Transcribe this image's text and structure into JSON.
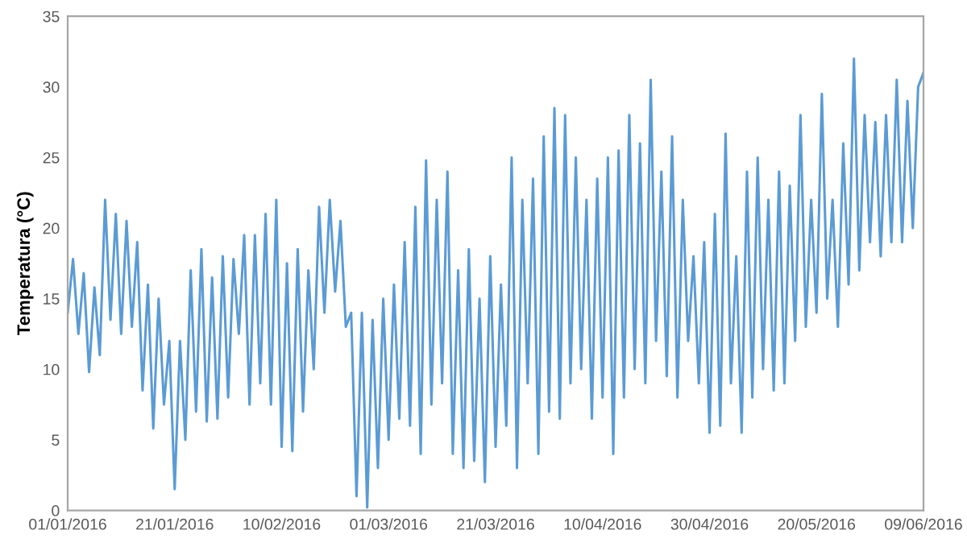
{
  "chart_data": {
    "type": "line",
    "ylabel": "Temperatura (°C)",
    "x": [
      "2016-01-01",
      "2016-01-02",
      "2016-01-03",
      "2016-01-04",
      "2016-01-05",
      "2016-01-06",
      "2016-01-07",
      "2016-01-08",
      "2016-01-09",
      "2016-01-10",
      "2016-01-11",
      "2016-01-12",
      "2016-01-13",
      "2016-01-14",
      "2016-01-15",
      "2016-01-16",
      "2016-01-17",
      "2016-01-18",
      "2016-01-19",
      "2016-01-20",
      "2016-01-21",
      "2016-01-22",
      "2016-01-23",
      "2016-01-24",
      "2016-01-25",
      "2016-01-26",
      "2016-01-27",
      "2016-01-28",
      "2016-01-29",
      "2016-01-30",
      "2016-01-31",
      "2016-02-01",
      "2016-02-02",
      "2016-02-03",
      "2016-02-04",
      "2016-02-05",
      "2016-02-06",
      "2016-02-07",
      "2016-02-08",
      "2016-02-09",
      "2016-02-10",
      "2016-02-11",
      "2016-02-12",
      "2016-02-13",
      "2016-02-14",
      "2016-02-15",
      "2016-02-16",
      "2016-02-17",
      "2016-02-18",
      "2016-02-19",
      "2016-02-20",
      "2016-02-21",
      "2016-02-22",
      "2016-02-23",
      "2016-02-24",
      "2016-02-25",
      "2016-02-26",
      "2016-02-27",
      "2016-02-28",
      "2016-02-29",
      "2016-03-01",
      "2016-03-02",
      "2016-03-03",
      "2016-03-04",
      "2016-03-05",
      "2016-03-06",
      "2016-03-07",
      "2016-03-08",
      "2016-03-09",
      "2016-03-10",
      "2016-03-11",
      "2016-03-12",
      "2016-03-13",
      "2016-03-14",
      "2016-03-15",
      "2016-03-16",
      "2016-03-17",
      "2016-03-18",
      "2016-03-19",
      "2016-03-20",
      "2016-03-21",
      "2016-03-22",
      "2016-03-23",
      "2016-03-24",
      "2016-03-25",
      "2016-03-26",
      "2016-03-27",
      "2016-03-28",
      "2016-03-29",
      "2016-03-30",
      "2016-03-31",
      "2016-04-01",
      "2016-04-02",
      "2016-04-03",
      "2016-04-04",
      "2016-04-05",
      "2016-04-06",
      "2016-04-07",
      "2016-04-08",
      "2016-04-09",
      "2016-04-10",
      "2016-04-11",
      "2016-04-12",
      "2016-04-13",
      "2016-04-14",
      "2016-04-15",
      "2016-04-16",
      "2016-04-17",
      "2016-04-18",
      "2016-04-19",
      "2016-04-20",
      "2016-04-21",
      "2016-04-22",
      "2016-04-23",
      "2016-04-24",
      "2016-04-25",
      "2016-04-26",
      "2016-04-27",
      "2016-04-28",
      "2016-04-29",
      "2016-04-30",
      "2016-05-01",
      "2016-05-02",
      "2016-05-03",
      "2016-05-04",
      "2016-05-05",
      "2016-05-06",
      "2016-05-07",
      "2016-05-08",
      "2016-05-09",
      "2016-05-10",
      "2016-05-11",
      "2016-05-12",
      "2016-05-13",
      "2016-05-14",
      "2016-05-15",
      "2016-05-16",
      "2016-05-17",
      "2016-05-18",
      "2016-05-19",
      "2016-05-20",
      "2016-05-21",
      "2016-05-22",
      "2016-05-23",
      "2016-05-24",
      "2016-05-25",
      "2016-05-26",
      "2016-05-27",
      "2016-05-28",
      "2016-05-29",
      "2016-05-30",
      "2016-05-31",
      "2016-06-01",
      "2016-06-02",
      "2016-06-03",
      "2016-06-04",
      "2016-06-05",
      "2016-06-06",
      "2016-06-07",
      "2016-06-08",
      "2016-06-09"
    ],
    "series": [
      {
        "color": "#5b9bd5",
        "values": [
          14,
          17.8,
          12.5,
          16.8,
          9.8,
          15.8,
          11,
          22,
          13.5,
          21,
          12.5,
          20.5,
          13,
          19,
          8.5,
          16,
          5.8,
          15,
          7.5,
          12,
          1.5,
          12,
          5,
          17,
          7,
          18.5,
          6.3,
          16.5,
          6.5,
          18,
          8,
          17.8,
          12.5,
          19.5,
          7.5,
          19.5,
          9,
          21,
          7.5,
          22,
          4.5,
          17.5,
          4.2,
          18.5,
          7,
          17,
          10,
          21.5,
          14,
          22,
          15.5,
          20.5,
          13,
          14,
          1,
          14,
          0.2,
          13.5,
          3,
          15,
          5,
          16,
          6.5,
          19,
          6,
          21.5,
          4,
          24.8,
          7.5,
          22,
          9,
          24,
          4,
          17,
          3,
          18.5,
          3.5,
          15,
          2,
          18,
          4.5,
          16,
          6,
          25,
          3,
          22,
          9,
          23.5,
          4,
          26.5,
          7,
          28.5,
          6.5,
          28,
          9,
          25,
          10,
          22,
          6.5,
          23.5,
          8,
          25,
          4,
          25.5,
          8,
          28,
          10,
          26,
          9,
          30.5,
          12,
          24,
          9.5,
          26.5,
          8,
          22,
          12,
          18,
          9,
          19,
          5.5,
          21,
          6,
          26.7,
          9,
          18,
          5.5,
          24,
          8,
          25,
          10,
          22,
          8.5,
          24,
          9,
          23,
          12,
          28,
          13,
          22,
          14,
          29.5,
          15,
          22,
          13,
          26,
          16,
          32,
          17,
          28,
          19,
          27.5,
          18,
          28,
          19,
          30.5,
          19,
          29,
          20,
          30,
          31
        ]
      }
    ],
    "xlim": [
      "2016-01-01",
      "2016-06-09"
    ],
    "xticks": [
      {
        "value": "2016-01-01",
        "label": "01/01/2016"
      },
      {
        "value": "2016-01-21",
        "label": "21/01/2016"
      },
      {
        "value": "2016-02-10",
        "label": "10/02/2016"
      },
      {
        "value": "2016-03-01",
        "label": "01/03/2016"
      },
      {
        "value": "2016-03-21",
        "label": "21/03/2016"
      },
      {
        "value": "2016-04-10",
        "label": "10/04/2016"
      },
      {
        "value": "2016-04-30",
        "label": "30/04/2016"
      },
      {
        "value": "2016-05-20",
        "label": "20/05/2016"
      },
      {
        "value": "2016-06-09",
        "label": "09/06/2016"
      }
    ],
    "ylim": [
      0,
      35
    ],
    "yticks": [
      0,
      5,
      10,
      15,
      20,
      25,
      30,
      35
    ],
    "grid": false,
    "legend": false,
    "marker": "none",
    "line_style": "solid"
  }
}
